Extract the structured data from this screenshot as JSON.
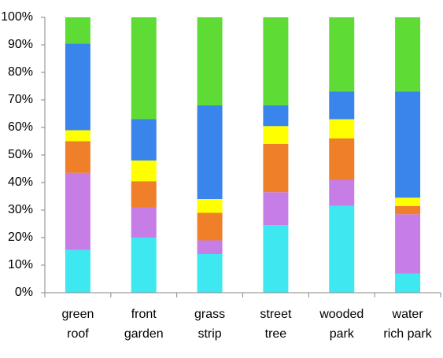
{
  "chart_data": {
    "type": "stacked_bar_100",
    "categories": [
      "green roof",
      "front garden",
      "grass strip",
      "street tree",
      "wooded park",
      "water rich park"
    ],
    "series": [
      {
        "color": "#3de8f0",
        "values": [
          15.5,
          20,
          14,
          24.5,
          31.5,
          7
        ]
      },
      {
        "color": "#c67ee6",
        "values": [
          28,
          11,
          5,
          12,
          9.5,
          21.5
        ]
      },
      {
        "color": "#f07f2a",
        "values": [
          11.5,
          9.5,
          10,
          17.5,
          15,
          3
        ]
      },
      {
        "color": "#ffff00",
        "values": [
          4,
          7.5,
          5,
          6.5,
          7,
          3
        ]
      },
      {
        "color": "#3a85ec",
        "values": [
          31.5,
          15,
          34,
          7.5,
          10,
          38.5
        ]
      },
      {
        "color": "#5edc35",
        "values": [
          9.5,
          37,
          32,
          32,
          27,
          27
        ]
      }
    ],
    "ylim": [
      0,
      100
    ],
    "yticks": [
      {
        "value": 0,
        "label": "0%"
      },
      {
        "value": 10,
        "label": "10%"
      },
      {
        "value": 20,
        "label": "20%"
      },
      {
        "value": 30,
        "label": "30%"
      },
      {
        "value": 40,
        "label": "40%"
      },
      {
        "value": 50,
        "label": "50%"
      },
      {
        "value": 60,
        "label": "60%"
      },
      {
        "value": 70,
        "label": "70%"
      },
      {
        "value": 80,
        "label": "80%"
      },
      {
        "value": 90,
        "label": "90%"
      },
      {
        "value": 100,
        "label": "100%"
      }
    ]
  }
}
